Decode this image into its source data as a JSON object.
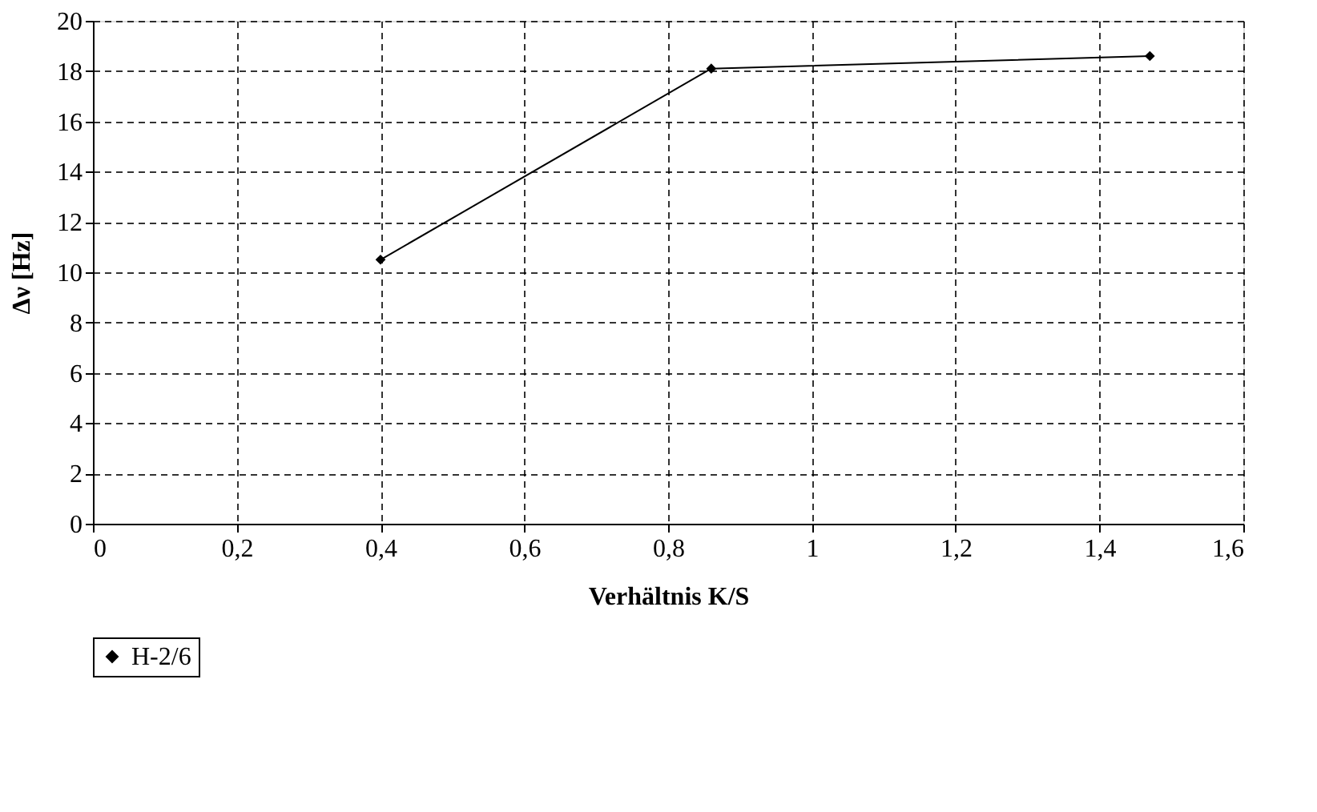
{
  "chart_data": {
    "type": "line",
    "xlabel": "Verhältnis K/S",
    "ylabel": "Δν [Hz]",
    "series": [
      {
        "name": "H-2/6",
        "color": "#000000",
        "x": [
          0.4,
          0.86,
          1.47
        ],
        "values": [
          10.5,
          18.1,
          18.6
        ]
      }
    ],
    "xlim": [
      0,
      1.6
    ],
    "xticks": [
      0,
      {
        "value": 0.2,
        "label": "0,2"
      },
      {
        "value": 0.4,
        "label": "0,4"
      },
      {
        "value": 0.6,
        "label": "0,6"
      },
      {
        "value": 0.8,
        "label": "0,8"
      },
      1,
      {
        "value": 1.2,
        "label": "1,2"
      },
      {
        "value": 1.4,
        "label": "1,4"
      },
      {
        "value": 1.6,
        "label": "1,6"
      }
    ],
    "ylim": [
      0,
      20
    ],
    "yticks": [
      0,
      2,
      4,
      6,
      8,
      10,
      12,
      14,
      16,
      18,
      20
    ],
    "grid": true,
    "legend": "bottom",
    "marker": "diamond",
    "line_style": "solid"
  }
}
